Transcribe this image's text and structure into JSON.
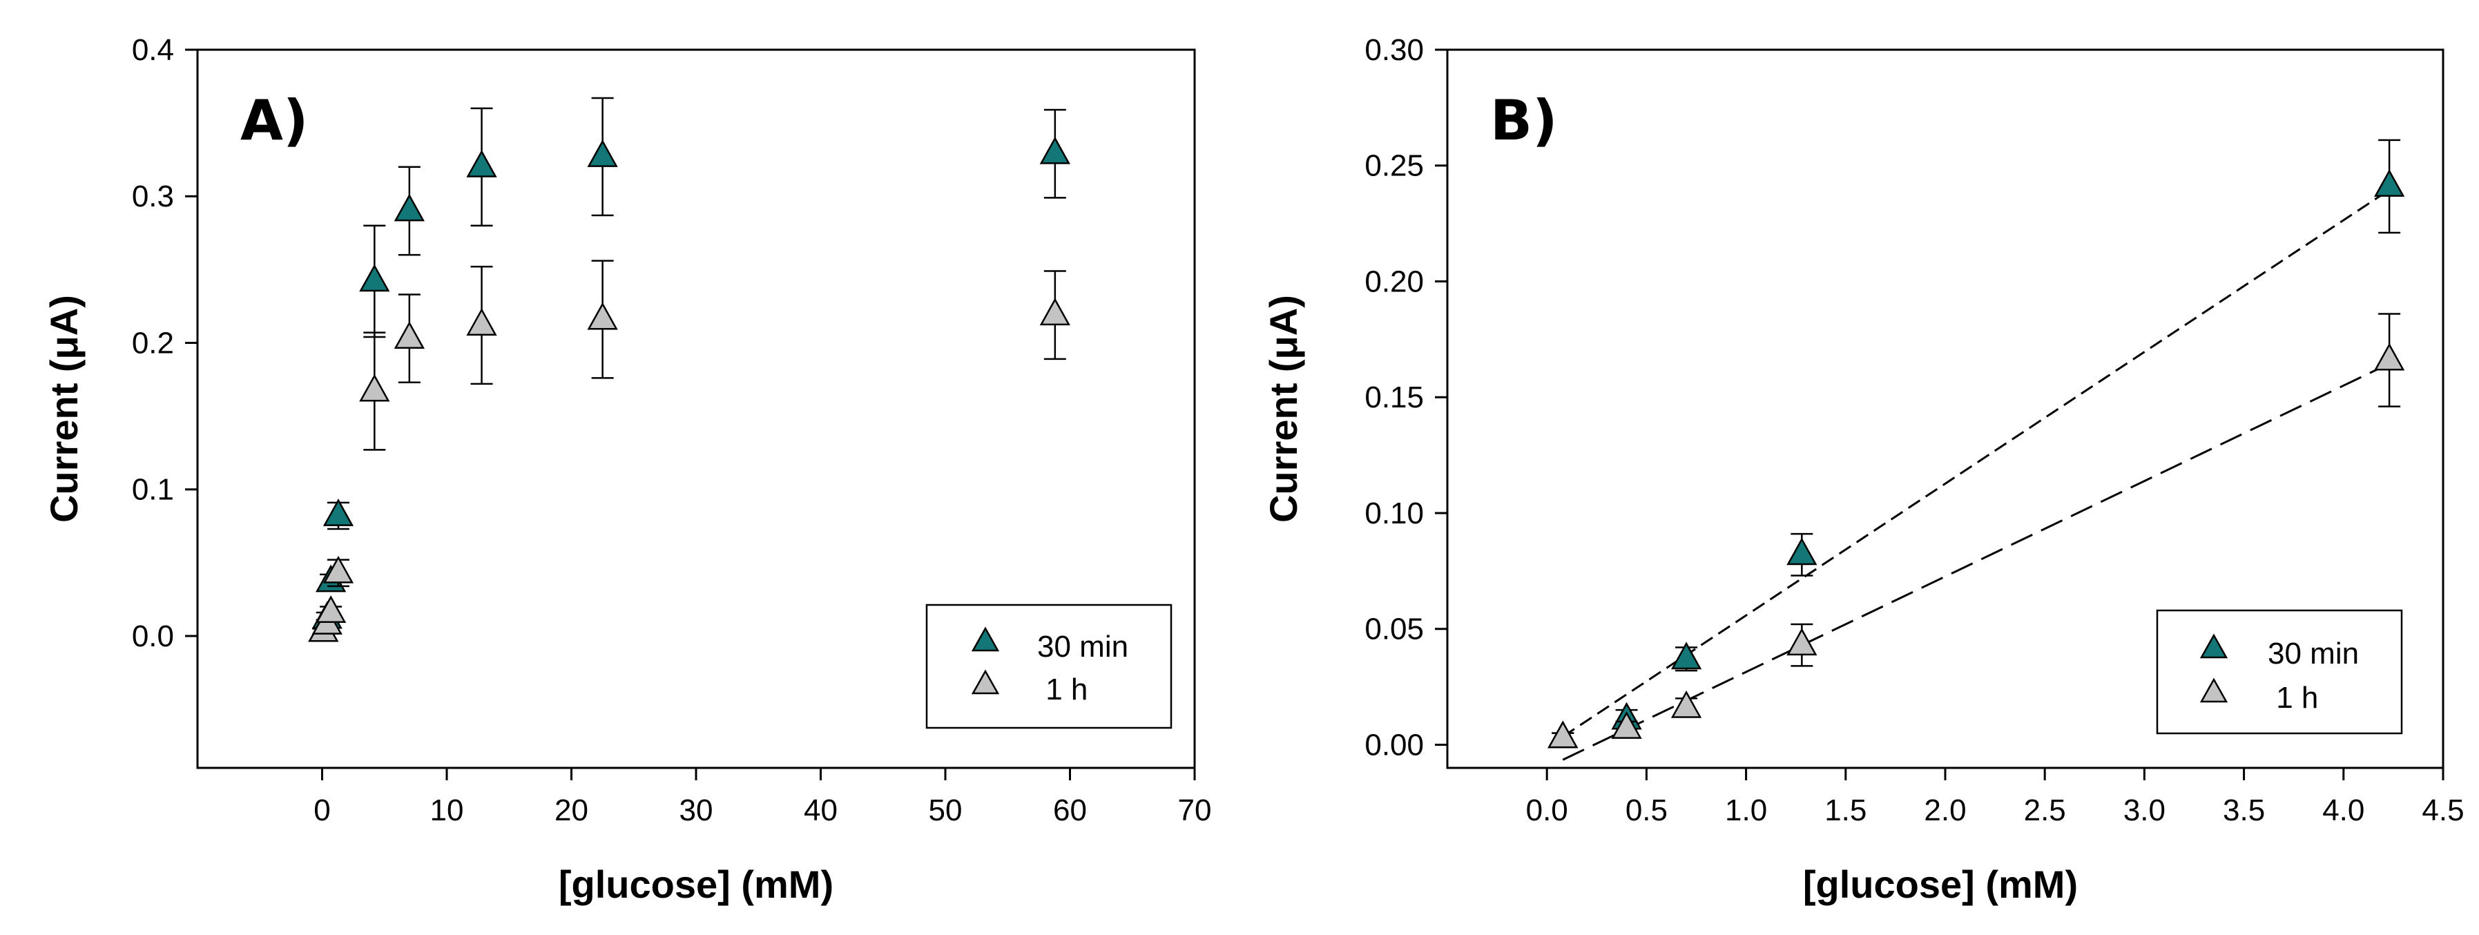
{
  "figure_colors": {
    "series_30min": "#137777",
    "series_1h": "#c3c3c3",
    "stroke": "#000000"
  },
  "chart_data": [
    {
      "type": "scatter",
      "panel_label": "A)",
      "xlabel": "[glucose] (mM)",
      "ylabel": "Current (μA)",
      "xlim": [
        -10,
        70
      ],
      "ylim": [
        -0.09,
        0.4
      ],
      "xticks": [
        0,
        10,
        20,
        30,
        40,
        50,
        60,
        70
      ],
      "xtick_labels": [
        "0",
        "10",
        "20",
        "30",
        "40",
        "50",
        "60",
        "70"
      ],
      "yticks": [
        0.0,
        0.1,
        0.2,
        0.3,
        0.4
      ],
      "ytick_labels": [
        "0.0",
        "0.1",
        "0.2",
        "0.3",
        "0.4"
      ],
      "grid": false,
      "legend": {
        "position": "bottom-right",
        "entries": [
          "30 min",
          " 1 h"
        ]
      },
      "series": [
        {
          "name": "30 min",
          "marker": "triangle",
          "color": "#137777",
          "x": [
            0.1,
            0.4,
            0.7,
            1.3,
            4.2,
            7.0,
            12.8,
            22.5,
            58.8
          ],
          "y": [
            0.003,
            0.012,
            0.037,
            0.082,
            0.242,
            0.29,
            0.32,
            0.327,
            0.329
          ],
          "yerr": [
            0.002,
            0.004,
            0.005,
            0.009,
            0.038,
            0.03,
            0.04,
            0.04,
            0.03
          ]
        },
        {
          "name": "1 h",
          "marker": "triangle",
          "color": "#c3c3c3",
          "x": [
            0.1,
            0.4,
            0.7,
            1.3,
            4.2,
            7.0,
            12.8,
            22.5,
            58.8
          ],
          "y": [
            0.003,
            0.008,
            0.016,
            0.043,
            0.167,
            0.203,
            0.212,
            0.216,
            0.219
          ],
          "yerr": [
            0.002,
            0.003,
            0.004,
            0.009,
            0.04,
            0.03,
            0.04,
            0.04,
            0.03
          ]
        }
      ]
    },
    {
      "type": "scatter",
      "panel_label": "B)",
      "xlabel": "[glucose] (mM)",
      "ylabel": "Current (μA)",
      "xlim": [
        -0.5,
        4.5
      ],
      "ylim": [
        -0.01,
        0.3
      ],
      "xticks": [
        0.0,
        0.5,
        1.0,
        1.5,
        2.0,
        2.5,
        3.0,
        3.5,
        4.0,
        4.5
      ],
      "xtick_labels": [
        "0.0",
        "0.5",
        "1.0",
        "1.5",
        "2.0",
        "2.5",
        "3.0",
        "3.5",
        "4.0",
        "4.5"
      ],
      "yticks": [
        0.0,
        0.05,
        0.1,
        0.15,
        0.2,
        0.25,
        0.3
      ],
      "ytick_labels": [
        "0.00",
        "0.05",
        "0.10",
        "0.15",
        "0.20",
        "0.25",
        "0.30"
      ],
      "grid": false,
      "legend": {
        "position": "bottom-right",
        "entries": [
          "30 min",
          " 1 h"
        ]
      },
      "series": [
        {
          "name": "30 min",
          "marker": "triangle",
          "color": "#137777",
          "x": [
            0.08,
            0.4,
            0.7,
            1.28,
            4.23
          ],
          "y": [
            0.003,
            0.011,
            0.037,
            0.082,
            0.241
          ],
          "yerr": [
            0.002,
            0.004,
            0.005,
            0.009,
            0.02
          ],
          "fit": {
            "x": [
              0.08,
              4.23
            ],
            "y": [
              0.0035,
              0.2395
            ]
          }
        },
        {
          "name": "1 h",
          "marker": "triangle",
          "color": "#c3c3c3",
          "x": [
            0.08,
            0.4,
            0.7,
            1.28,
            4.23
          ],
          "y": [
            0.003,
            0.007,
            0.016,
            0.043,
            0.166
          ],
          "yerr": [
            0.002,
            0.003,
            0.004,
            0.009,
            0.02
          ],
          "fit": {
            "x": [
              0.08,
              4.23
            ],
            "y": [
              -0.0065,
              0.1645
            ]
          }
        }
      ]
    }
  ]
}
